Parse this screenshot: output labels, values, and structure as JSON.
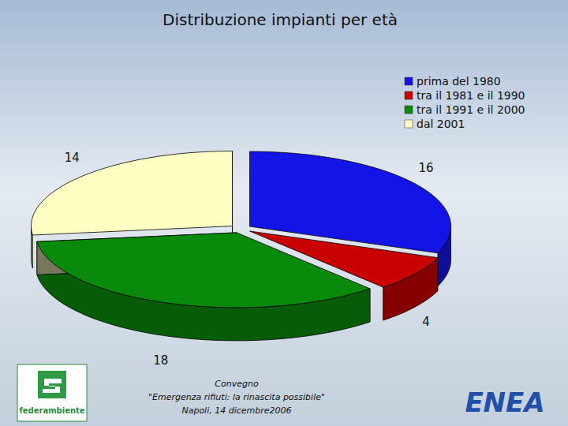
{
  "chart_data": {
    "type": "pie",
    "title": "Distribuzione impianti per età",
    "categories": [
      "prima del 1980",
      "tra il 1981 e il 1990",
      "tra il 1991 e il 2000",
      "dal 2001"
    ],
    "values": [
      16,
      4,
      18,
      14
    ],
    "colors": [
      "#1414e6",
      "#c80000",
      "#0a8a0a",
      "#ffffc4"
    ],
    "data_labels": true,
    "legend": "top-right",
    "annotations": [
      "Convegno",
      "\"Emergenza rifiuti: la rinascita possibile\"",
      "Napoli, 14 dicembre2006",
      "federambiente",
      "ENEA"
    ]
  }
}
